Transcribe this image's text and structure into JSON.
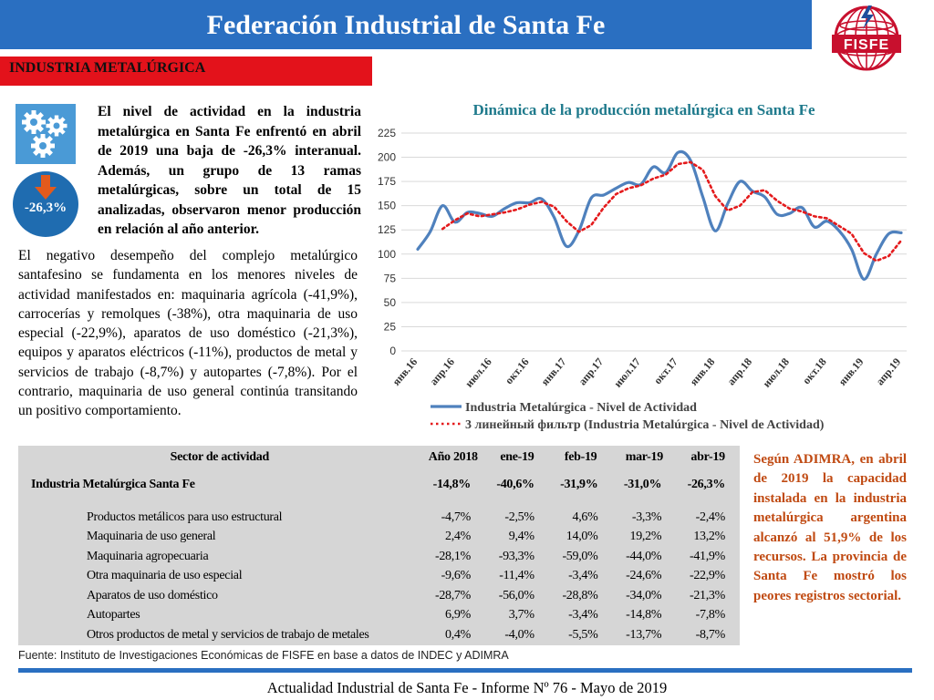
{
  "header": {
    "title": "Federación Industrial de Santa Fe",
    "logo_text": "FISFE"
  },
  "section": {
    "title": "INDUSTRIA METALÚRGICA"
  },
  "badge": {
    "value": "-26,3%"
  },
  "intro": "El nivel de actividad en la industria metalúrgica en Santa Fe enfrentó en abril de 2019 una baja de -26,3% interanual. Además, un grupo de 13 ramas metalúrgicas, sobre un total de 15 analizadas, observaron menor producción en relación al año anterior.",
  "body": "El negativo desempeño del complejo metalúrgico santafesino se fundamenta en los menores niveles de actividad manifestados en: maquinaria agrícola (-41,9%), carrocerías y remolques (-38%), otra maquinaria de uso especial (-22,9%), aparatos de uso doméstico (-21,3%), equipos y aparatos eléctricos (-11%), productos de metal y servicios de trabajo (-8,7%) y autopartes (-7,8%). Por el contrario, maquinaria de uso general continúa transitando un positivo comportamiento.",
  "chart_data": {
    "type": "line",
    "title": "Dinámica de la producción metalúrgica en Santa Fe",
    "ylim": [
      0,
      225
    ],
    "yticks": [
      "0",
      "25",
      "50",
      "75",
      "100",
      "125",
      "150",
      "175",
      "200",
      "225"
    ],
    "x_tick_labels": [
      "янв.16",
      "апр.16",
      "июл.16",
      "окт.16",
      "янв.17",
      "апр.17",
      "июл.17",
      "окт.17",
      "янв.18",
      "апр.18",
      "июл.18",
      "окт.18",
      "янв.19",
      "апр.19"
    ],
    "grid": true,
    "legend_position": "bottom",
    "series": [
      {
        "name": "Industria Metalúrgica - Nivel de Actividad",
        "color": "#4f81bd",
        "style": "solid",
        "values": [
          105,
          123,
          150,
          133,
          143,
          142,
          139,
          147,
          153,
          153,
          157,
          138,
          108,
          124,
          158,
          161,
          168,
          174,
          172,
          190,
          184,
          205,
          197,
          159,
          124,
          152,
          175,
          165,
          159,
          141,
          142,
          148,
          128,
          134,
          124,
          105,
          74,
          100,
          121,
          122
        ]
      },
      {
        "name": "3 линейный фильтр (Industria Metalúrgica - Nivel de Actividad)",
        "color": "#e41a1c",
        "style": "dotted",
        "values": [
          null,
          null,
          126,
          135,
          142,
          139,
          141,
          143,
          146,
          151,
          154,
          149,
          134,
          123,
          130,
          148,
          162,
          168,
          171,
          178,
          182,
          193,
          195,
          187,
          160,
          145,
          150,
          164,
          166,
          155,
          147,
          144,
          139,
          137,
          129,
          121,
          101,
          93,
          98,
          114
        ]
      }
    ]
  },
  "table": {
    "headers": [
      "Sector de actividad",
      "Año 2018",
      "ene-19",
      "feb-19",
      "mar-19",
      "abr-19"
    ],
    "main_row": [
      "Industria Metalúrgica Santa Fe",
      "-14,8%",
      "-40,6%",
      "-31,9%",
      "-31,0%",
      "-26,3%"
    ],
    "rows": [
      [
        "Productos metálicos para uso estructural",
        "-4,7%",
        "-2,5%",
        "4,6%",
        "-3,3%",
        "-2,4%"
      ],
      [
        "Maquinaria de uso general",
        "2,4%",
        "9,4%",
        "14,0%",
        "19,2%",
        "13,2%"
      ],
      [
        "Maquinaria agropecuaria",
        "-28,1%",
        "-93,3%",
        "-59,0%",
        "-44,0%",
        "-41,9%"
      ],
      [
        "Otra maquinaria de uso especial",
        "-9,6%",
        "-11,4%",
        "-3,4%",
        "-24,6%",
        "-22,9%"
      ],
      [
        "Aparatos de uso doméstico",
        "-28,7%",
        "-56,0%",
        "-28,8%",
        "-34,0%",
        "-21,3%"
      ],
      [
        "Autopartes",
        "6,9%",
        "3,7%",
        "-3,4%",
        "-14,8%",
        "-7,8%"
      ],
      [
        "Otros productos de metal y servicios de trabajo de metales",
        "0,4%",
        "-4,0%",
        "-5,5%",
        "-13,7%",
        "-8,7%"
      ]
    ]
  },
  "side_note": "Según ADIMRA, en abril de 2019 la capacidad instalada en la industria metalúrgica argentina alcanzó al 51,9% de los recursos. La provincia de Santa Fe mostró los peores registros sectorial.",
  "source": "Fuente: Instituto de Investigaciones Económicas de FISFE en base a datos de INDEC y ADIMRA",
  "footer": "Actualidad Industrial de Santa Fe - Informe Nº 76 - Mayo de 2019",
  "colors": {
    "header_blue": "#2a6fc1",
    "section_red": "#e3121b",
    "note_orange": "#c04a12",
    "table_gray": "#d6d6d6"
  },
  "icons": {
    "gears": "gears-icon",
    "down_arrow": "down-arrow-icon",
    "logo": "fisfe-logo"
  }
}
